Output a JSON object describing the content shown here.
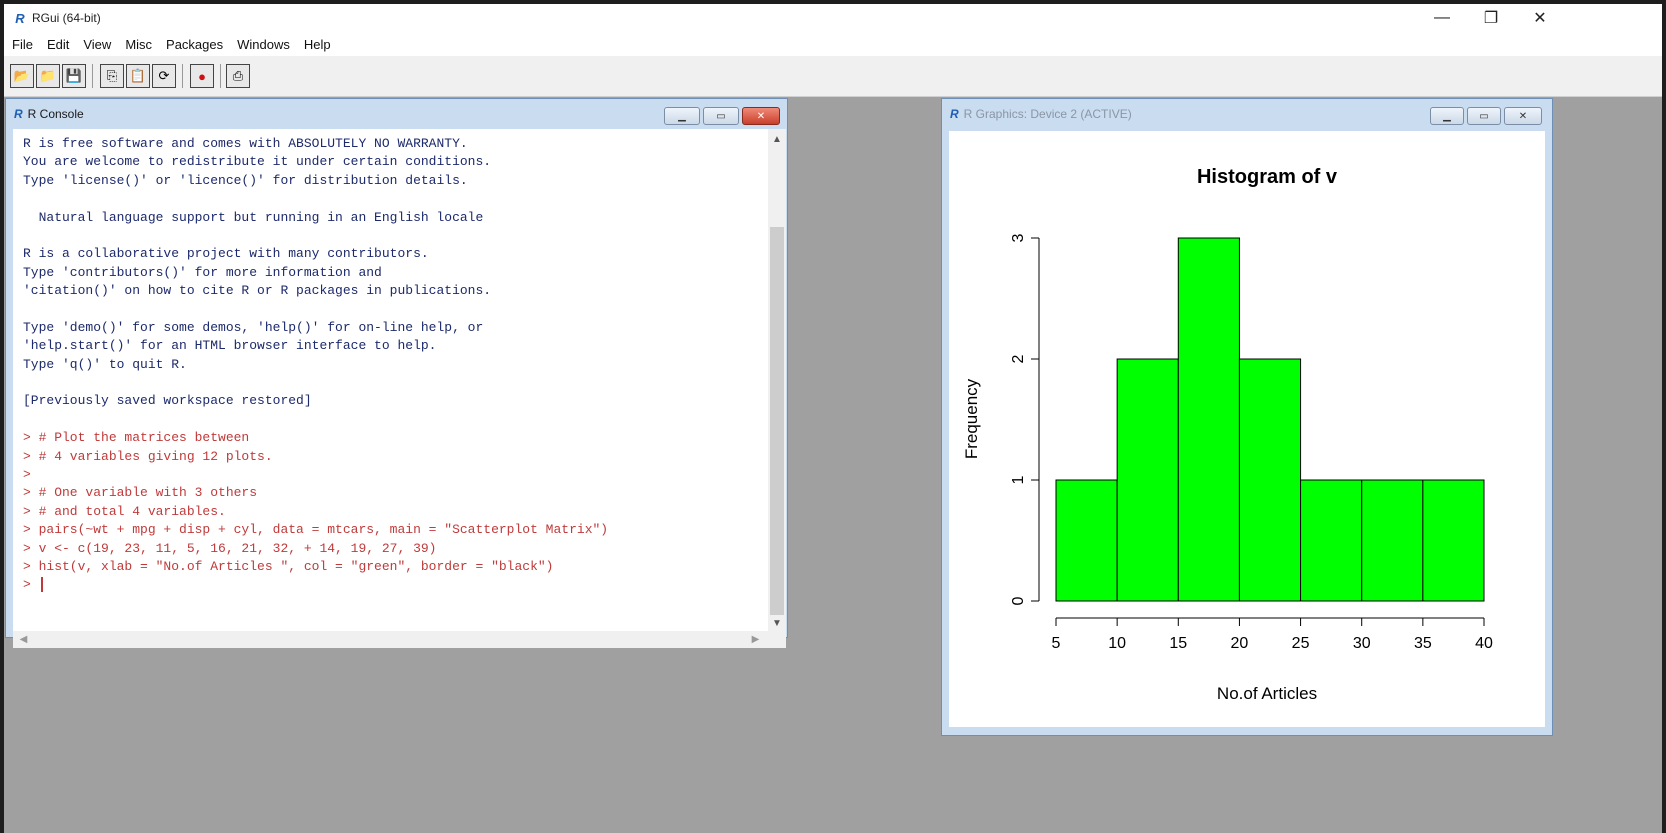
{
  "app": {
    "title": "RGui (64-bit)",
    "logo": "R",
    "window_controls": {
      "minimize": "—",
      "restore": "❐",
      "close": "✕"
    }
  },
  "menu": [
    "File",
    "Edit",
    "View",
    "Misc",
    "Packages",
    "Windows",
    "Help"
  ],
  "toolbar": {
    "buttons": [
      {
        "name": "open-script-button",
        "icon": "open-folder-icon",
        "glyph": "📂"
      },
      {
        "name": "load-workspace-button",
        "icon": "load-workspace-icon",
        "glyph": "📁"
      },
      {
        "name": "save-workspace-button",
        "icon": "save-icon",
        "glyph": "💾"
      },
      {
        "name": "copy-button",
        "icon": "copy-icon",
        "glyph": "⎘"
      },
      {
        "name": "paste-button",
        "icon": "paste-icon",
        "glyph": "📋"
      },
      {
        "name": "copy-paste-button",
        "icon": "refresh-icon",
        "glyph": "⟳"
      },
      {
        "name": "stop-button",
        "icon": "stop-icon",
        "glyph": "●"
      },
      {
        "name": "print-button",
        "icon": "print-icon",
        "glyph": "⎙"
      }
    ]
  },
  "console": {
    "title": "R Console",
    "logo": "R",
    "lines": [
      {
        "text": "R is free software and comes with ABSOLUTELY NO WARRANTY.",
        "kind": "out"
      },
      {
        "text": "You are welcome to redistribute it under certain conditions.",
        "kind": "out"
      },
      {
        "text": "Type 'license()' or 'licence()' for distribution details.",
        "kind": "out"
      },
      {
        "text": "",
        "kind": "out"
      },
      {
        "text": "  Natural language support but running in an English locale",
        "kind": "out"
      },
      {
        "text": "",
        "kind": "out"
      },
      {
        "text": "R is a collaborative project with many contributors.",
        "kind": "out"
      },
      {
        "text": "Type 'contributors()' for more information and",
        "kind": "out"
      },
      {
        "text": "'citation()' on how to cite R or R packages in publications.",
        "kind": "out"
      },
      {
        "text": "",
        "kind": "out"
      },
      {
        "text": "Type 'demo()' for some demos, 'help()' for on-line help, or",
        "kind": "out"
      },
      {
        "text": "'help.start()' for an HTML browser interface to help.",
        "kind": "out"
      },
      {
        "text": "Type 'q()' to quit R.",
        "kind": "out"
      },
      {
        "text": "",
        "kind": "out"
      },
      {
        "text": "[Previously saved workspace restored]",
        "kind": "out"
      },
      {
        "text": "",
        "kind": "out"
      },
      {
        "text": "> # Plot the matrices between",
        "kind": "cmd"
      },
      {
        "text": "> # 4 variables giving 12 plots.",
        "kind": "cmd"
      },
      {
        "text": ">",
        "kind": "cmd"
      },
      {
        "text": "> # One variable with 3 others",
        "kind": "cmd"
      },
      {
        "text": "> # and total 4 variables.",
        "kind": "cmd"
      },
      {
        "text": "> pairs(~wt + mpg + disp + cyl, data = mtcars, main = \"Scatterplot Matrix\")",
        "kind": "cmd"
      },
      {
        "text": "> v <- c(19, 23, 11, 5, 16, 21, 32, + 14, 19, 27, 39)",
        "kind": "cmd"
      },
      {
        "text": "> hist(v, xlab = \"No.of Articles \", col = \"green\", border = \"black\")",
        "kind": "cmd"
      },
      {
        "text": "> ",
        "kind": "prompt"
      }
    ]
  },
  "graphics": {
    "title": "R Graphics: Device 2 (ACTIVE)",
    "logo": "R"
  },
  "chart_data": {
    "type": "bar",
    "title": "Histogram of v",
    "xlabel": "No.of Articles",
    "ylabel": "Frequency",
    "bin_edges": [
      5,
      10,
      15,
      20,
      25,
      30,
      35,
      40
    ],
    "values": [
      1,
      2,
      3,
      2,
      1,
      1,
      1
    ],
    "x_ticks": [
      5,
      10,
      15,
      20,
      25,
      30,
      35,
      40
    ],
    "y_ticks": [
      0,
      1,
      2,
      3
    ],
    "xlim": [
      5,
      40
    ],
    "ylim": [
      0,
      3
    ],
    "bar_color": "#00ff00",
    "border_color": "#000000",
    "grid": false
  }
}
